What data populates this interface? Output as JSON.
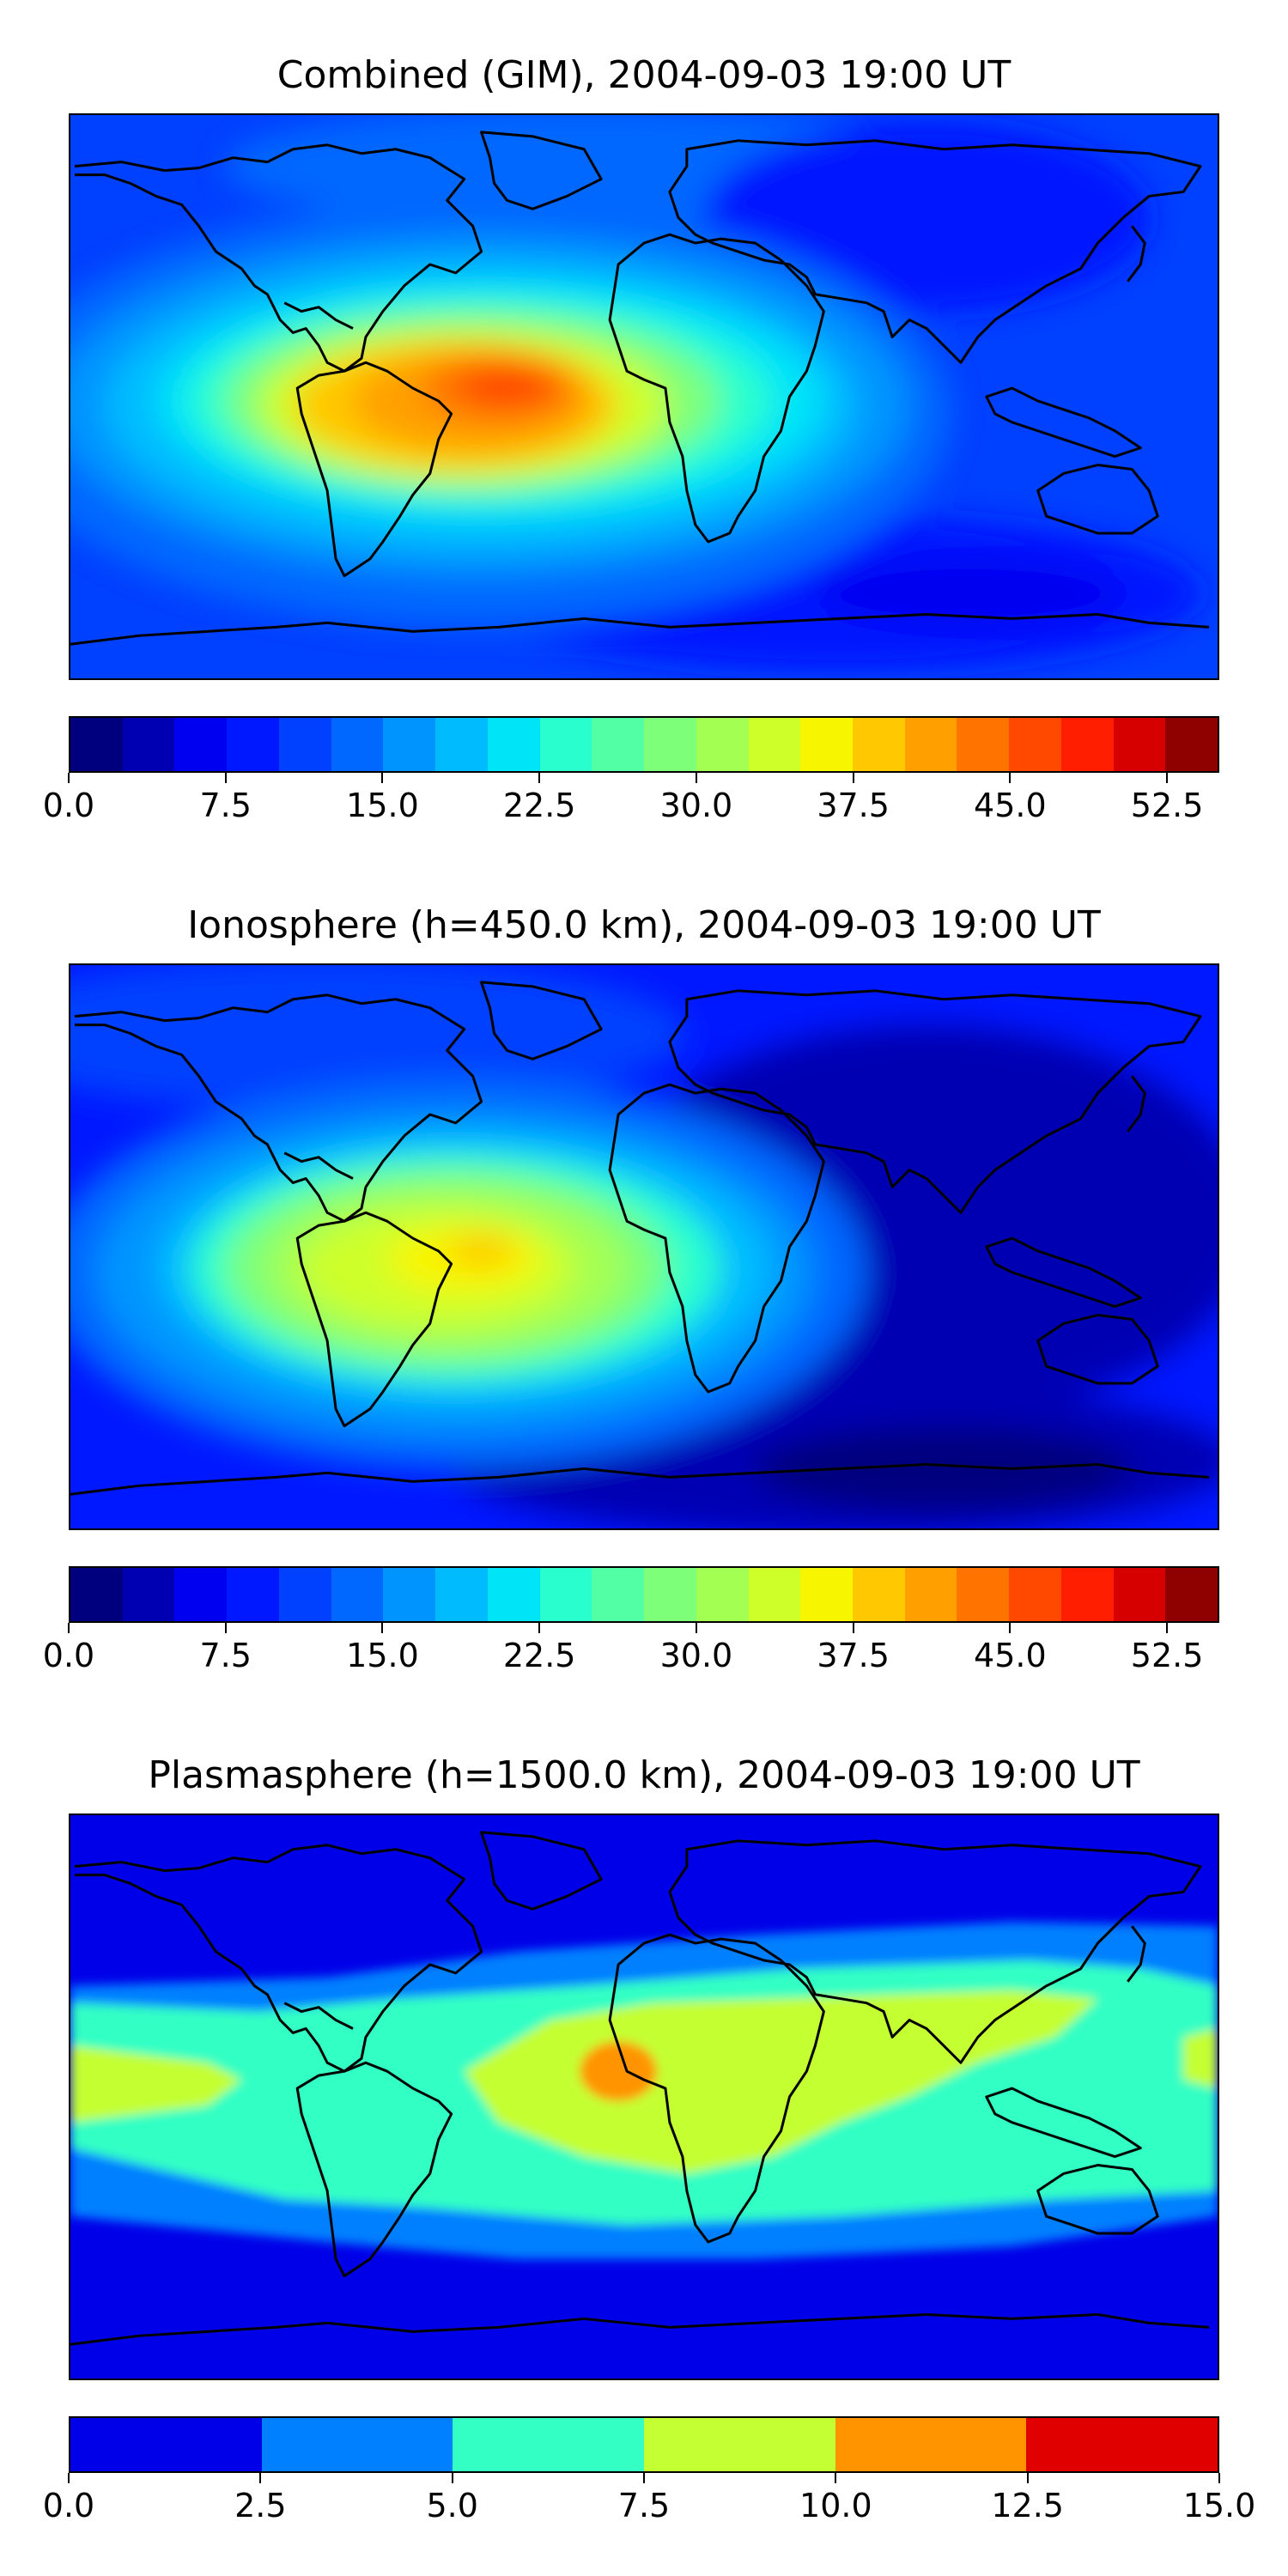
{
  "panels": [
    {
      "id": "combined",
      "title": "Combined (GIM), 2004-09-03 19:00 UT",
      "colorbar": {
        "min": 0.0,
        "max": 55.0,
        "colors": [
          "#00007f",
          "#0000b3",
          "#0000f0",
          "#0018ff",
          "#0040ff",
          "#0068ff",
          "#0094ff",
          "#00bcff",
          "#00e4f8",
          "#29ffce",
          "#53ffa4",
          "#7dff7a",
          "#a4ff53",
          "#ceff29",
          "#f8f500",
          "#ffc800",
          "#ffa000",
          "#ff7400",
          "#ff4800",
          "#ff1e00",
          "#d60000",
          "#8f0000"
        ],
        "ticks": [
          {
            "value": 0.0,
            "label": "0.0"
          },
          {
            "value": 7.5,
            "label": "7.5"
          },
          {
            "value": 15.0,
            "label": "15.0"
          },
          {
            "value": 22.5,
            "label": "22.5"
          },
          {
            "value": 30.0,
            "label": "30.0"
          },
          {
            "value": 37.5,
            "label": "37.5"
          },
          {
            "value": 45.0,
            "label": "45.0"
          },
          {
            "value": 52.5,
            "label": "52.5"
          }
        ]
      }
    },
    {
      "id": "ionosphere",
      "title": "Ionosphere  (h=450.0 km), 2004-09-03 19:00 UT",
      "colorbar": {
        "min": 0.0,
        "max": 55.0,
        "colors": [
          "#00007f",
          "#0000b3",
          "#0000f0",
          "#0018ff",
          "#0040ff",
          "#0068ff",
          "#0094ff",
          "#00bcff",
          "#00e4f8",
          "#29ffce",
          "#53ffa4",
          "#7dff7a",
          "#a4ff53",
          "#ceff29",
          "#f8f500",
          "#ffc800",
          "#ffa000",
          "#ff7400",
          "#ff4800",
          "#ff1e00",
          "#d60000",
          "#8f0000"
        ],
        "ticks": [
          {
            "value": 0.0,
            "label": "0.0"
          },
          {
            "value": 7.5,
            "label": "7.5"
          },
          {
            "value": 15.0,
            "label": "15.0"
          },
          {
            "value": 22.5,
            "label": "22.5"
          },
          {
            "value": 30.0,
            "label": "30.0"
          },
          {
            "value": 37.5,
            "label": "37.5"
          },
          {
            "value": 45.0,
            "label": "45.0"
          },
          {
            "value": 52.5,
            "label": "52.5"
          }
        ]
      }
    },
    {
      "id": "plasmasphere",
      "title": "Plasmasphere (h=1500.0 km), 2004-09-03 19:00 UT",
      "colorbar": {
        "min": 0.0,
        "max": 15.0,
        "colors": [
          "#0000e8",
          "#0080ff",
          "#33ffc4",
          "#c4ff33",
          "#ff9400",
          "#e00000"
        ],
        "ticks": [
          {
            "value": 0.0,
            "label": "0.0"
          },
          {
            "value": 2.5,
            "label": "2.5"
          },
          {
            "value": 5.0,
            "label": "5.0"
          },
          {
            "value": 7.5,
            "label": "7.5"
          },
          {
            "value": 10.0,
            "label": "10.0"
          },
          {
            "value": 12.5,
            "label": "12.5"
          },
          {
            "value": 15.0,
            "label": "15.0"
          }
        ]
      }
    }
  ]
}
